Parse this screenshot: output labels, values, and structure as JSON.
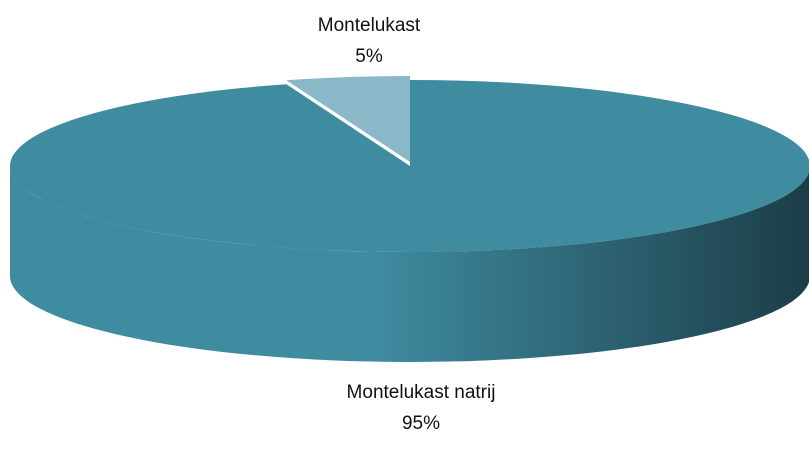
{
  "chart_data": {
    "type": "pie3d",
    "categories": [
      "Montelukast",
      "Montelukast natrij"
    ],
    "values": [
      5,
      95
    ],
    "value_labels": [
      "5%",
      "95%"
    ],
    "colors": [
      "#8ab8c8",
      "#3f8ca1"
    ],
    "side_color_dark": "#1c3d48"
  }
}
